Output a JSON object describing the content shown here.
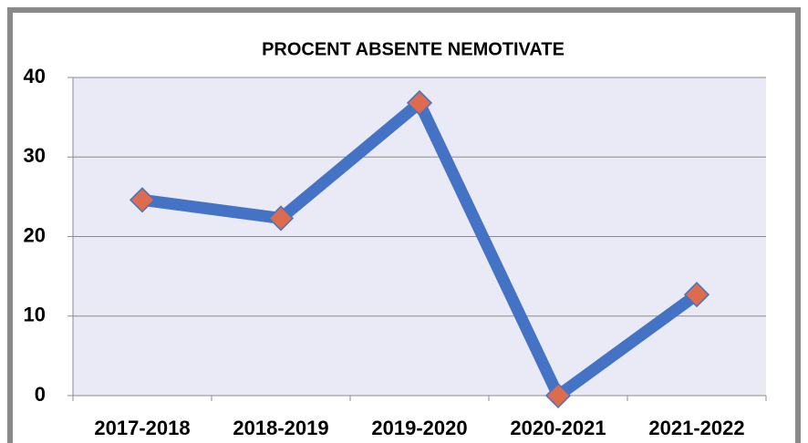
{
  "chart_data": {
    "type": "line",
    "title": "PROCENT ABSENTE NEMOTIVATE",
    "categories": [
      "2017-2018",
      "2018-2019",
      "2019-2020",
      "2020-2021",
      "2021-2022"
    ],
    "series": [
      {
        "name": "PROCENT ABSENTE NEMOTIVATE",
        "color": "#4472c4",
        "marker_color": "#dd6b4d",
        "values": [
          24.6,
          22.3,
          36.8,
          0,
          12.7
        ]
      }
    ],
    "ylim": [
      0,
      40
    ],
    "yticks": [
      0,
      10,
      20,
      30,
      40
    ],
    "grid": true
  }
}
